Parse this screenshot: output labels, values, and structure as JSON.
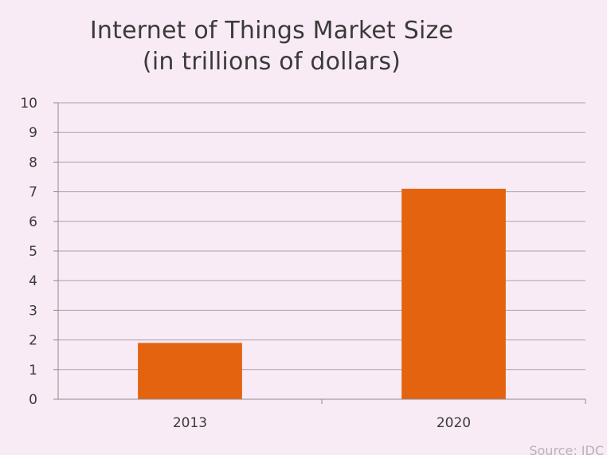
{
  "chart_data": {
    "type": "bar",
    "title_line1": "Internet of Things Market Size",
    "title_line2": "(in trillions of dollars)",
    "categories": [
      "2013",
      "2020"
    ],
    "values": [
      1.9,
      7.1
    ],
    "ylim": [
      0,
      10
    ],
    "yticks": [
      "0",
      "1",
      "2",
      "3",
      "4",
      "5",
      "6",
      "7",
      "8",
      "9",
      "10"
    ],
    "grid": true,
    "bar_color": "#e4630f",
    "source": "Source: IDC"
  }
}
